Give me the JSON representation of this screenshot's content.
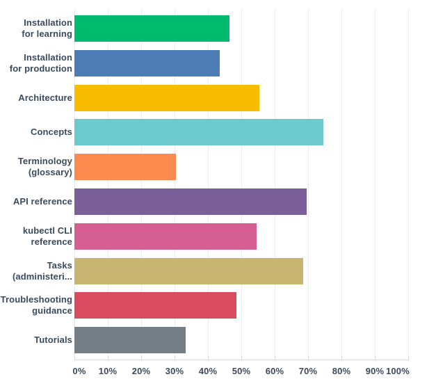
{
  "chart_data": {
    "type": "bar",
    "orientation": "horizontal",
    "title": "",
    "xlabel": "",
    "ylabel": "",
    "unit": "%",
    "categories": [
      "Installation for learning",
      "Installation for production",
      "Architecture",
      "Concepts",
      "Terminology (glossary)",
      "API reference",
      "kubectl CLI reference",
      "Tasks (administeri...",
      "Troubleshooting guidance",
      "Tutorials"
    ],
    "category_label_lines": [
      [
        "Installation",
        "for learning"
      ],
      [
        "Installation",
        "for production"
      ],
      [
        "Architecture"
      ],
      [
        "Concepts"
      ],
      [
        "Terminology",
        "(glossary)"
      ],
      [
        "API reference"
      ],
      [
        "kubectl CLI",
        "reference"
      ],
      [
        "Tasks",
        "(administeri..."
      ],
      [
        "Troubleshooting",
        "guidance"
      ],
      [
        "Tutorials"
      ]
    ],
    "values": [
      46.5,
      43.5,
      55.5,
      74.5,
      30.5,
      69.5,
      54.5,
      68.5,
      48.5,
      33.3
    ],
    "bar_colors": [
      "#00ba6e",
      "#4e7cb4",
      "#f8bd00",
      "#6cc9cd",
      "#fc8a4f",
      "#7b5f99",
      "#d45f90",
      "#c8b571",
      "#d94b5e",
      "#757d85"
    ],
    "xlim": [
      0,
      100
    ],
    "x_ticks": [
      0,
      10,
      20,
      30,
      40,
      50,
      60,
      70,
      80,
      90,
      100
    ],
    "x_tick_labels": [
      "0%",
      "10%",
      "20%",
      "30%",
      "40%",
      "50%",
      "60%",
      "70%",
      "80%",
      "90%",
      "100%"
    ],
    "grid": "vertical",
    "legend": "none"
  },
  "styles": {
    "background": "#ffffff",
    "text_color": "#3b4a5f",
    "gridline_color": "#ececec",
    "axis_color": "#d9d9d9"
  }
}
